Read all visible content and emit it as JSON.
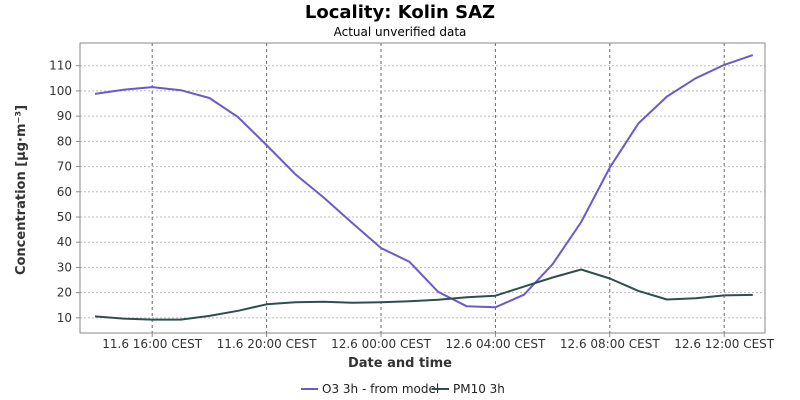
{
  "chart_data": {
    "type": "line",
    "title": "Locality: Kolin SAZ",
    "subtitle": "Actual unverified data",
    "xlabel": "Date and time",
    "ylabel": "Concentration [µg·m⁻³]",
    "x": [
      "11.6 14:00 CEST",
      "11.6 15:00 CEST",
      "11.6 16:00 CEST",
      "11.6 17:00 CEST",
      "11.6 18:00 CEST",
      "11.6 19:00 CEST",
      "11.6 20:00 CEST",
      "11.6 21:00 CEST",
      "11.6 22:00 CEST",
      "11.6 23:00 CEST",
      "12.6 00:00 CEST",
      "12.6 01:00 CEST",
      "12.6 02:00 CEST",
      "12.6 03:00 CEST",
      "12.6 04:00 CEST",
      "12.6 05:00 CEST",
      "12.6 06:00 CEST",
      "12.6 07:00 CEST",
      "12.6 08:00 CEST",
      "12.6 09:00 CEST",
      "12.6 10:00 CEST",
      "12.6 11:00 CEST",
      "12.6 12:00 CEST",
      "12.6 13:00 CEST"
    ],
    "x_ticks": [
      "11.6 16:00 CEST",
      "11.6 20:00 CEST",
      "12.6 00:00 CEST",
      "12.6 04:00 CEST",
      "12.6 08:00 CEST",
      "12.6 12:00 CEST"
    ],
    "y_ticks": [
      10,
      20,
      30,
      40,
      50,
      60,
      70,
      80,
      90,
      100,
      110
    ],
    "ylim": [
      4,
      119
    ],
    "grid": true,
    "legend_position": "bottom",
    "series": [
      {
        "name": "O3 3h - from model",
        "color": "#6a5acd",
        "values": [
          98.8,
          100.5,
          101.5,
          100.3,
          97.2,
          89.6,
          78.5,
          67.0,
          57.7,
          47.6,
          37.7,
          32.2,
          20.3,
          14.6,
          14.2,
          19.2,
          31.3,
          48.0,
          69.6,
          87.1,
          97.8,
          105.0,
          110.3,
          114.2
        ]
      },
      {
        "name": "PM10 3h",
        "color": "#2f4f4f",
        "values": [
          10.6,
          9.7,
          9.3,
          9.3,
          10.8,
          12.8,
          15.4,
          16.2,
          16.4,
          16.0,
          16.2,
          16.6,
          17.2,
          18.2,
          18.8,
          22.4,
          26.0,
          29.2,
          25.6,
          20.7,
          17.3,
          17.8,
          18.9,
          19.1
        ]
      }
    ]
  }
}
